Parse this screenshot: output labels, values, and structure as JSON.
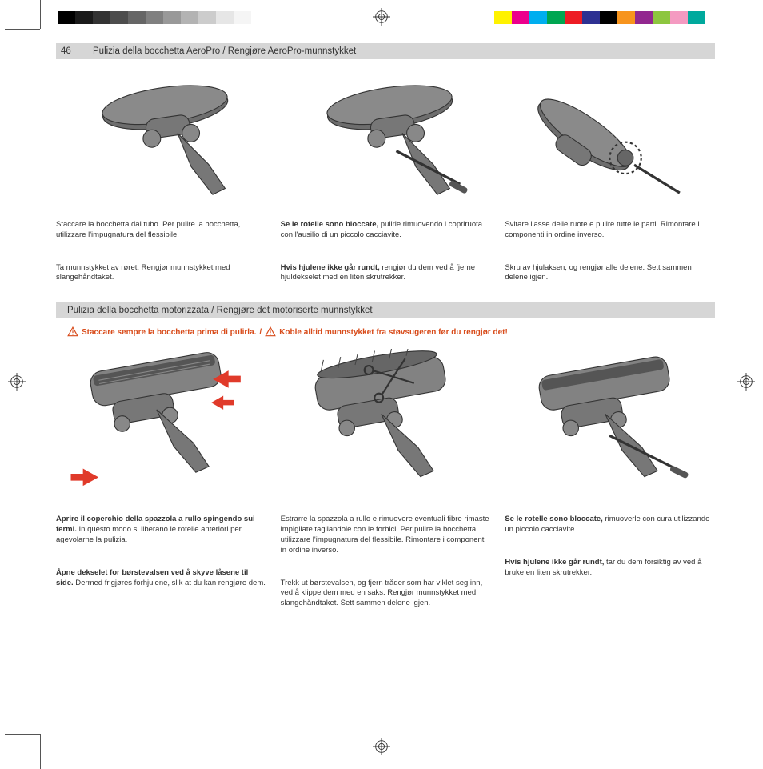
{
  "print_marks": {
    "grayscale_bar": [
      "#000000",
      "#1a1a1a",
      "#333333",
      "#4d4d4d",
      "#666666",
      "#808080",
      "#999999",
      "#b3b3b3",
      "#cccccc",
      "#e6e6e6",
      "#f5f5f5",
      "#ffffff"
    ],
    "color_bar": [
      "#fff200",
      "#ec008c",
      "#00aeef",
      "#00a651",
      "#ed1c24",
      "#2e3192",
      "#000000",
      "#f7941d",
      "#92278f",
      "#8dc63f",
      "#f49ac1",
      "#00a99d"
    ]
  },
  "header": {
    "page_number": "46",
    "title": "Pulizia della bocchetta AeroPro / Rengjøre AeroPro-munnstykket"
  },
  "section1": {
    "cells": [
      {
        "it": "Staccare la bocchetta dal tubo. Per pulire la bocchetta, utilizzare l'impugnatura del flessibile.",
        "no": "Ta munnstykket av røret. Rengjør munnstykket med slangehåndtaket."
      },
      {
        "it_bold": "Se le rotelle sono bloccate,",
        "it_rest": " pulirle rimuovendo i copriruota con l'ausilio di un piccolo cacciavite.",
        "no_bold": "Hvis hjulene ikke går rundt,",
        "no_rest": " rengjør du dem ved å fjerne hjuldekselet med en liten skrutrekker."
      },
      {
        "it": "Svitare l'asse delle ruote e pulire tutte le parti. Rimontare i componenti in ordine inverso.",
        "no": "Skru av hjulaksen, og rengjør alle delene. Sett sammen delene igjen."
      }
    ]
  },
  "section2": {
    "header": "Pulizia della bocchetta motorizzata / Rengjøre det motoriserte munnstykket",
    "warning_it": "Staccare sempre la bocchetta prima di pulirla.",
    "warning_sep": " / ",
    "warning_no": "Koble alltid munnstykket fra støvsugeren før du rengjør det!",
    "cells": [
      {
        "it_bold": "Aprire il coperchio della spazzola a rullo spingendo sui fermi.",
        "it_rest": " In questo modo si liberano le rotelle anteriori per agevolarne la pulizia.",
        "no_bold": "Åpne dekselet for børstevalsen ved å skyve låsene til side.",
        "no_rest": " Dermed frigjøres forhjulene, slik at du kan rengjøre dem."
      },
      {
        "it": "Estrarre la spazzola a rullo e rimuovere eventuali fibre rimaste impigliate tagliandole con le forbici. Per pulire la bocchetta, utilizzare l'impugnatura del flessibile. Rimontare i componenti in ordine inverso.",
        "no": "Trekk ut børstevalsen, og fjern tråder som har viklet seg inn, ved å klippe dem med en saks. Rengjør munnstykket med slangehåndtaket. Sett sammen delene igjen."
      },
      {
        "it_bold": "Se le rotelle sono bloccate,",
        "it_rest": " rimuoverle con cura utilizzando un piccolo cacciavite.",
        "no_bold": "Hvis hjulene ikke går rundt,",
        "no_rest": " tar du dem forsiktig av ved å bruke en liten skrutrekker."
      }
    ]
  }
}
